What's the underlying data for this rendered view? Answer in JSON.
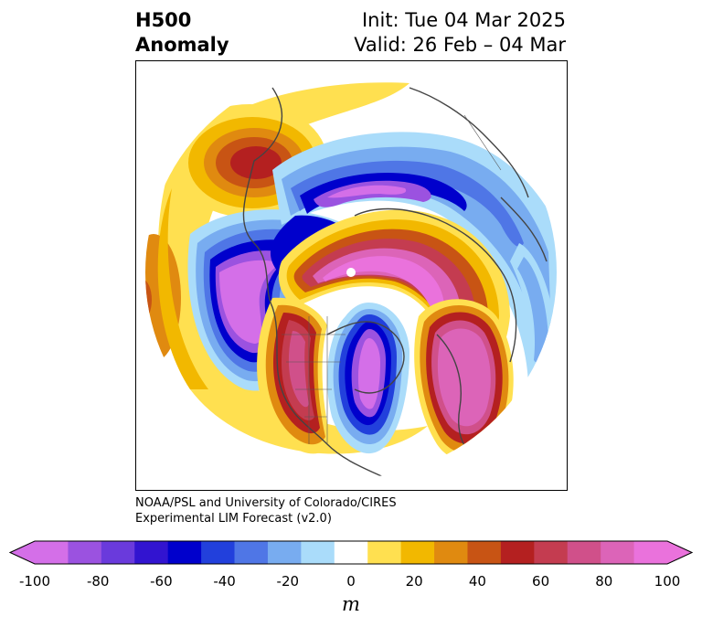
{
  "title": {
    "left_line1": "H500",
    "left_line2": "Anomaly",
    "right_line1": "Init: Tue 04 Mar 2025",
    "right_line2": "Valid: 26 Feb – 04 Mar"
  },
  "credit": {
    "line1": "NOAA/PSL and University of Colorado/CIRES",
    "line2": "Experimental LIM Forecast (v2.0)"
  },
  "colorbar": {
    "unit": "m",
    "tick_labels": [
      "-100",
      "-80",
      "-60",
      "-40",
      "-20",
      "0",
      "20",
      "40",
      "60",
      "80",
      "100"
    ],
    "colors": [
      "#d46fe8",
      "#9b52e0",
      "#6a3adc",
      "#3214d0",
      "#0000cc",
      "#2240dc",
      "#4f76e6",
      "#78acf0",
      "#aadcfa",
      "#ffffff",
      "#ffe050",
      "#f2b800",
      "#e08a10",
      "#c85414",
      "#b42020",
      "#c43c50",
      "#d0508a",
      "#dc64b8",
      "#ea72dc"
    ],
    "under_color": "#d46fe8",
    "over_color": "#ea72dc"
  },
  "map_data": {
    "projection": "north-polar-stereographic",
    "variable": "500 hPa geopotential height anomaly",
    "features": [
      {
        "type": "negative",
        "center": "Bering Sea / Gulf of Alaska",
        "min_value": -100
      },
      {
        "type": "negative",
        "center": "Eastern North America / Hudson Bay",
        "min_value": -100
      },
      {
        "type": "negative",
        "center": "North Atlantic / Greenland",
        "min_value": -100
      },
      {
        "type": "positive",
        "center": "Western North America",
        "max_value": 60
      },
      {
        "type": "positive",
        "center": "Arctic / North Pole",
        "max_value": 100
      },
      {
        "type": "positive",
        "center": "Northern Europe",
        "max_value": 100
      },
      {
        "type": "positive",
        "center": "Eastern Siberia",
        "max_value": 60
      },
      {
        "type": "negative",
        "center": "Eastern Europe / Western Siberia",
        "min_value": -40
      }
    ]
  }
}
